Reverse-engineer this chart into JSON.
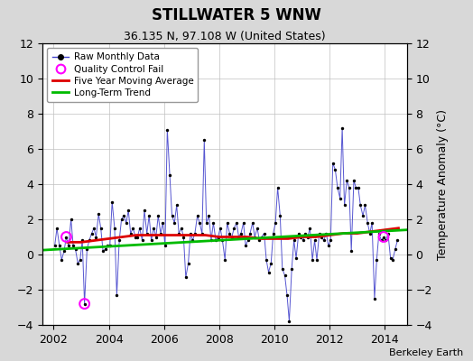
{
  "title": "STILLWATER 5 WNW",
  "subtitle": "36.135 N, 97.108 W (United States)",
  "ylabel": "Temperature Anomaly (°C)",
  "credit": "Berkeley Earth",
  "xlim": [
    2001.6,
    2014.8
  ],
  "ylim": [
    -4,
    12
  ],
  "yticks": [
    -4,
    -2,
    0,
    2,
    4,
    6,
    8,
    10,
    12
  ],
  "xticks": [
    2002,
    2004,
    2006,
    2008,
    2010,
    2012,
    2014
  ],
  "bg_color": "#d8d8d8",
  "plot_bg_color": "#ffffff",
  "raw_color": "#4444cc",
  "raw_marker_color": "#000000",
  "qc_fail_color": "#ff00ff",
  "moving_avg_color": "#dd0000",
  "trend_color": "#00bb00",
  "raw_data_x": [
    2002.04,
    2002.12,
    2002.21,
    2002.29,
    2002.38,
    2002.46,
    2002.54,
    2002.63,
    2002.71,
    2002.79,
    2002.88,
    2002.96,
    2003.04,
    2003.12,
    2003.21,
    2003.29,
    2003.38,
    2003.46,
    2003.54,
    2003.63,
    2003.71,
    2003.79,
    2003.88,
    2003.96,
    2004.04,
    2004.12,
    2004.21,
    2004.29,
    2004.38,
    2004.46,
    2004.54,
    2004.63,
    2004.71,
    2004.79,
    2004.88,
    2004.96,
    2005.04,
    2005.12,
    2005.21,
    2005.29,
    2005.38,
    2005.46,
    2005.54,
    2005.63,
    2005.71,
    2005.79,
    2005.88,
    2005.96,
    2006.04,
    2006.12,
    2006.21,
    2006.29,
    2006.38,
    2006.46,
    2006.54,
    2006.63,
    2006.71,
    2006.79,
    2006.88,
    2006.96,
    2007.04,
    2007.12,
    2007.21,
    2007.29,
    2007.38,
    2007.46,
    2007.54,
    2007.63,
    2007.71,
    2007.79,
    2007.88,
    2007.96,
    2008.04,
    2008.12,
    2008.21,
    2008.29,
    2008.38,
    2008.46,
    2008.54,
    2008.63,
    2008.71,
    2008.79,
    2008.88,
    2008.96,
    2009.04,
    2009.12,
    2009.21,
    2009.29,
    2009.38,
    2009.46,
    2009.54,
    2009.63,
    2009.71,
    2009.79,
    2009.88,
    2009.96,
    2010.04,
    2010.12,
    2010.21,
    2010.29,
    2010.38,
    2010.46,
    2010.54,
    2010.63,
    2010.71,
    2010.79,
    2010.88,
    2010.96,
    2011.04,
    2011.12,
    2011.21,
    2011.29,
    2011.38,
    2011.46,
    2011.54,
    2011.63,
    2011.71,
    2011.79,
    2011.88,
    2011.96,
    2012.04,
    2012.12,
    2012.21,
    2012.29,
    2012.38,
    2012.46,
    2012.54,
    2012.63,
    2012.71,
    2012.79,
    2012.88,
    2012.96,
    2013.04,
    2013.12,
    2013.21,
    2013.29,
    2013.38,
    2013.46,
    2013.54,
    2013.63,
    2013.71,
    2013.79,
    2013.88,
    2013.96,
    2014.04,
    2014.12,
    2014.21,
    2014.29,
    2014.38,
    2014.46
  ],
  "raw_data_y": [
    0.5,
    1.5,
    0.5,
    -0.3,
    0.2,
    1.0,
    0.5,
    2.0,
    0.5,
    0.3,
    -0.5,
    -0.3,
    0.8,
    -2.8,
    0.3,
    0.8,
    1.2,
    1.5,
    1.0,
    2.3,
    1.5,
    0.2,
    0.3,
    0.5,
    0.5,
    3.0,
    1.5,
    -2.3,
    0.8,
    2.0,
    2.2,
    1.8,
    2.5,
    1.2,
    1.5,
    1.0,
    1.0,
    1.5,
    0.8,
    2.5,
    1.2,
    2.2,
    0.8,
    1.5,
    1.0,
    2.2,
    1.2,
    1.8,
    0.5,
    7.1,
    4.5,
    2.2,
    1.8,
    2.8,
    1.2,
    1.5,
    1.0,
    -1.3,
    -0.5,
    1.2,
    0.8,
    1.2,
    2.2,
    1.8,
    1.2,
    6.5,
    1.8,
    2.2,
    0.8,
    1.8,
    0.8,
    1.0,
    1.5,
    0.8,
    -0.3,
    1.8,
    1.2,
    1.0,
    1.5,
    1.8,
    1.0,
    1.2,
    1.8,
    0.5,
    0.8,
    1.2,
    1.8,
    1.0,
    1.5,
    0.8,
    1.0,
    1.2,
    -0.3,
    -1.0,
    -0.5,
    1.2,
    1.8,
    3.8,
    2.2,
    -0.8,
    -1.2,
    -2.3,
    -3.8,
    -0.8,
    0.8,
    -0.2,
    1.2,
    1.0,
    0.8,
    1.2,
    1.0,
    1.5,
    -0.3,
    0.8,
    -0.3,
    1.2,
    1.0,
    0.8,
    1.2,
    0.5,
    0.8,
    5.2,
    4.8,
    3.8,
    3.2,
    7.2,
    2.8,
    4.2,
    3.8,
    0.2,
    4.2,
    3.8,
    3.8,
    2.8,
    2.2,
    2.8,
    1.8,
    1.2,
    1.8,
    -2.5,
    -0.3,
    1.2,
    0.8,
    1.0,
    0.8,
    1.2,
    -0.2,
    -0.3,
    0.3,
    0.8
  ],
  "qc_fail_points": [
    [
      2002.46,
      1.0
    ],
    [
      2003.12,
      -2.8
    ],
    [
      2013.96,
      1.0
    ]
  ],
  "moving_avg_x": [
    2002.5,
    2003.0,
    2003.5,
    2004.0,
    2004.5,
    2005.0,
    2005.5,
    2006.0,
    2006.5,
    2007.0,
    2007.5,
    2008.0,
    2008.5,
    2009.0,
    2009.5,
    2010.0,
    2010.5,
    2011.0,
    2011.5,
    2012.0,
    2012.5,
    2013.0,
    2013.5,
    2014.0,
    2014.5
  ],
  "moving_avg_y": [
    0.7,
    0.7,
    0.8,
    0.9,
    1.0,
    1.1,
    1.1,
    1.1,
    1.1,
    1.1,
    1.1,
    1.0,
    1.0,
    1.0,
    0.9,
    0.9,
    0.9,
    1.0,
    1.0,
    1.1,
    1.2,
    1.2,
    1.3,
    1.4,
    1.5
  ],
  "trend_x": [
    2001.6,
    2014.8
  ],
  "trend_y": [
    0.25,
    1.4
  ]
}
